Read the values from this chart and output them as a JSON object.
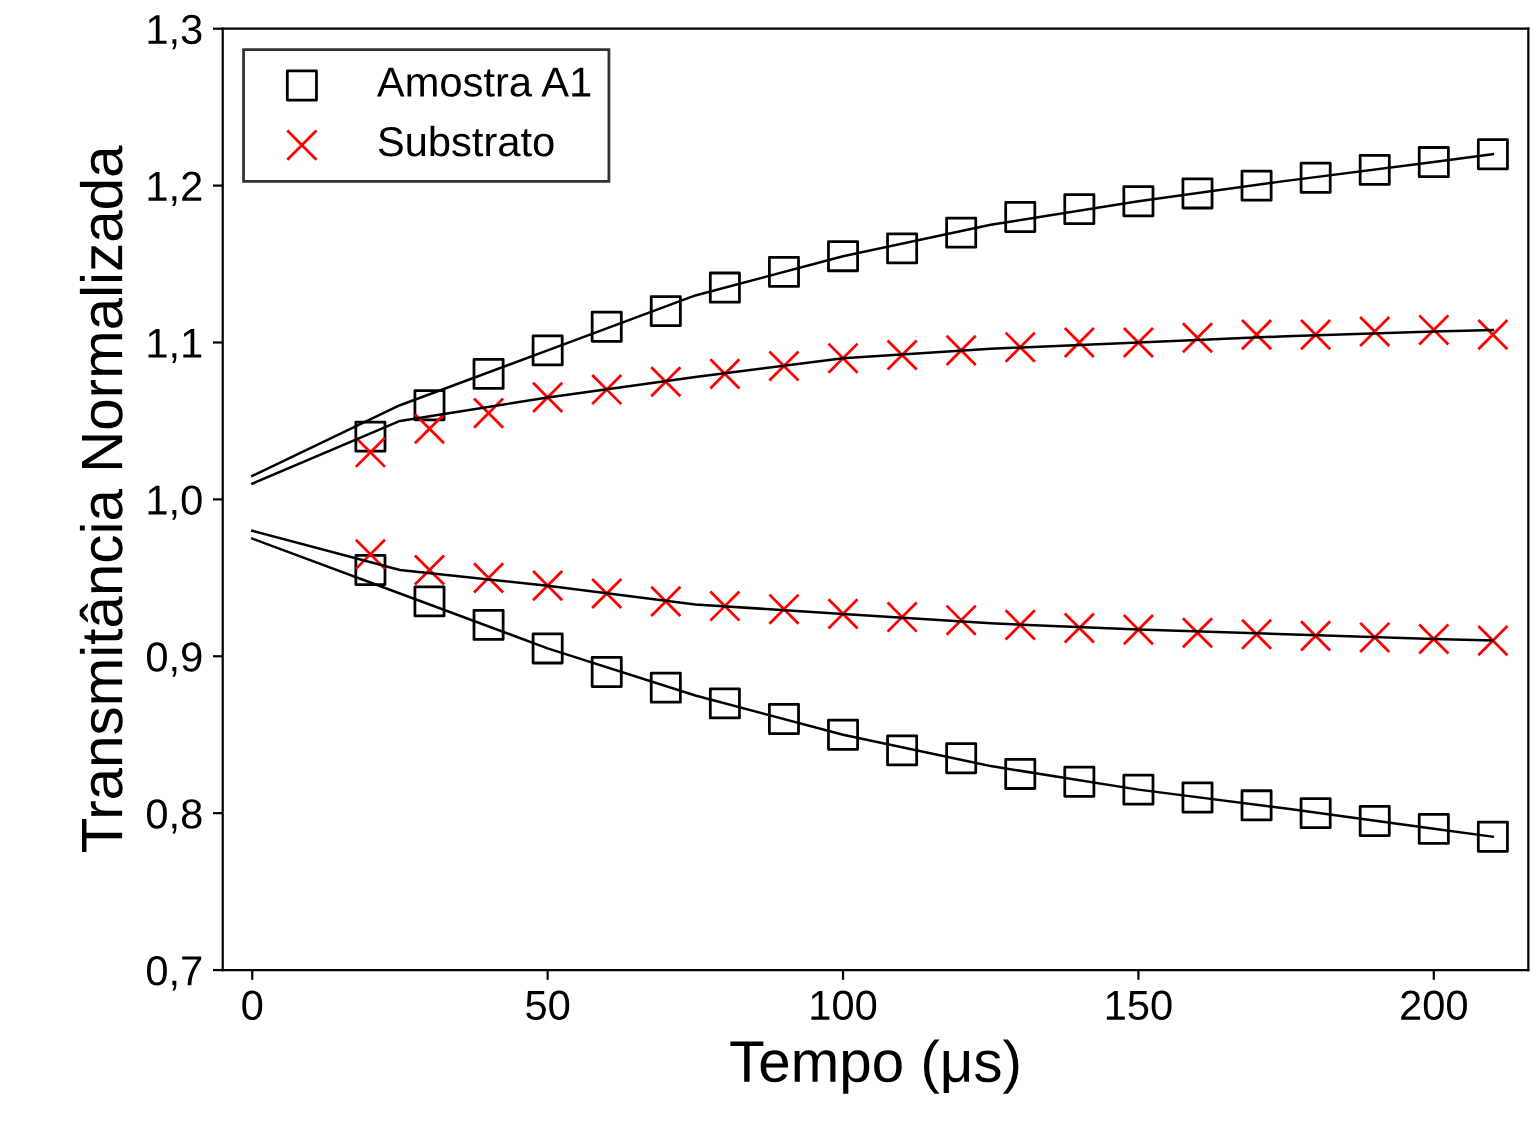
{
  "chart_data": {
    "type": "scatter",
    "xlabel": "Tempo (μs)",
    "ylabel": "Transmitância Normalizada",
    "xlim": [
      -5,
      216
    ],
    "ylim": [
      0.7,
      1.3
    ],
    "xticks": [
      0,
      50,
      100,
      150,
      200
    ],
    "yticks": [
      {
        "value": 0.7,
        "label": "0,7"
      },
      {
        "value": 0.8,
        "label": "0,8"
      },
      {
        "value": 0.9,
        "label": "0,9"
      },
      {
        "value": 1.0,
        "label": "1,0"
      },
      {
        "value": 1.1,
        "label": "1,1"
      },
      {
        "value": 1.2,
        "label": "1,2"
      },
      {
        "value": 1.3,
        "label": "1,3"
      }
    ],
    "grid": false,
    "legend": "top left",
    "series": [
      {
        "name": "Amostra A1",
        "marker": "square",
        "color": "#000000",
        "x": [
          20,
          30,
          40,
          50,
          60,
          70,
          80,
          90,
          100,
          110,
          120,
          130,
          140,
          150,
          160,
          170,
          180,
          190,
          200,
          210
        ],
        "values": [
          1.04,
          1.06,
          1.08,
          1.095,
          1.11,
          1.12,
          1.135,
          1.145,
          1.155,
          1.16,
          1.17,
          1.18,
          1.185,
          1.19,
          1.195,
          1.2,
          1.205,
          1.21,
          1.215,
          1.22
        ]
      },
      {
        "marker": "square",
        "color": "#000000",
        "x": [
          20,
          30,
          40,
          50,
          60,
          70,
          80,
          90,
          100,
          110,
          120,
          130,
          140,
          150,
          160,
          170,
          180,
          190,
          200,
          210
        ],
        "values": [
          0.955,
          0.935,
          0.92,
          0.905,
          0.89,
          0.88,
          0.87,
          0.86,
          0.85,
          0.84,
          0.835,
          0.825,
          0.82,
          0.815,
          0.81,
          0.805,
          0.8,
          0.795,
          0.79,
          0.785
        ]
      },
      {
        "name": "Substrato",
        "marker": "cross",
        "color": "#ff0000",
        "x": [
          20,
          30,
          40,
          50,
          60,
          70,
          80,
          90,
          100,
          110,
          120,
          130,
          140,
          150,
          160,
          170,
          180,
          190,
          200,
          210
        ],
        "values": [
          1.03,
          1.045,
          1.055,
          1.065,
          1.07,
          1.075,
          1.08,
          1.085,
          1.09,
          1.092,
          1.095,
          1.097,
          1.1,
          1.1,
          1.103,
          1.105,
          1.105,
          1.107,
          1.108,
          1.105
        ]
      },
      {
        "marker": "cross",
        "color": "#ff0000",
        "x": [
          20,
          30,
          40,
          50,
          60,
          70,
          80,
          90,
          100,
          110,
          120,
          130,
          140,
          150,
          160,
          170,
          180,
          190,
          200,
          210
        ],
        "values": [
          0.965,
          0.955,
          0.95,
          0.945,
          0.94,
          0.935,
          0.932,
          0.93,
          0.927,
          0.925,
          0.923,
          0.92,
          0.918,
          0.917,
          0.915,
          0.914,
          0.913,
          0.912,
          0.911,
          0.91
        ]
      },
      {
        "type": "line",
        "marker": "none",
        "color": "#000000",
        "x": [
          0,
          25,
          50,
          75,
          100,
          125,
          150,
          175,
          200,
          210
        ],
        "values": [
          1.015,
          1.06,
          1.095,
          1.13,
          1.155,
          1.175,
          1.19,
          1.203,
          1.215,
          1.22
        ]
      },
      {
        "type": "line",
        "marker": "none",
        "color": "#000000",
        "x": [
          0,
          25,
          50,
          75,
          100,
          125,
          150,
          175,
          200,
          210
        ],
        "values": [
          1.01,
          1.05,
          1.065,
          1.078,
          1.09,
          1.096,
          1.1,
          1.104,
          1.107,
          1.108
        ]
      },
      {
        "type": "line",
        "marker": "none",
        "color": "#000000",
        "x": [
          0,
          25,
          50,
          75,
          100,
          125,
          150,
          175,
          200,
          210
        ],
        "values": [
          0.975,
          0.94,
          0.905,
          0.875,
          0.85,
          0.83,
          0.815,
          0.803,
          0.79,
          0.785
        ]
      },
      {
        "type": "line",
        "marker": "none",
        "color": "#000000",
        "x": [
          0,
          25,
          50,
          75,
          100,
          125,
          150,
          175,
          200,
          210
        ],
        "values": [
          0.98,
          0.955,
          0.945,
          0.933,
          0.927,
          0.921,
          0.917,
          0.914,
          0.911,
          0.91
        ]
      }
    ]
  }
}
